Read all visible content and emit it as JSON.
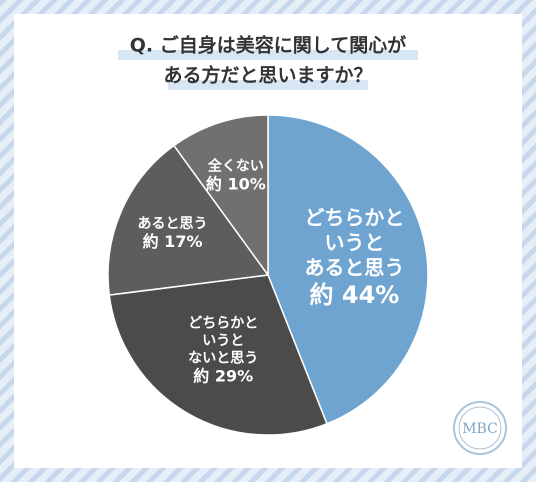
{
  "chart_data": {
    "type": "pie",
    "title": [
      "Q. ご自身は美容に関して関心が",
      "ある方だと思いますか？"
    ],
    "categories": [
      [
        "どちらかと",
        "いうと",
        "あると思う"
      ],
      [
        "どちらかと",
        "いうと",
        "ないと思う"
      ],
      [
        "あると思う"
      ],
      [
        "全くない"
      ]
    ],
    "values": [
      44,
      29,
      17,
      10
    ],
    "value_labels": [
      "約 44%",
      "約 29%",
      "約 17%",
      "約 10%"
    ],
    "colors": [
      "#6fa4d0",
      "#4b4b4b",
      "#5d5d5d",
      "#707070"
    ],
    "logo": "MBC"
  }
}
